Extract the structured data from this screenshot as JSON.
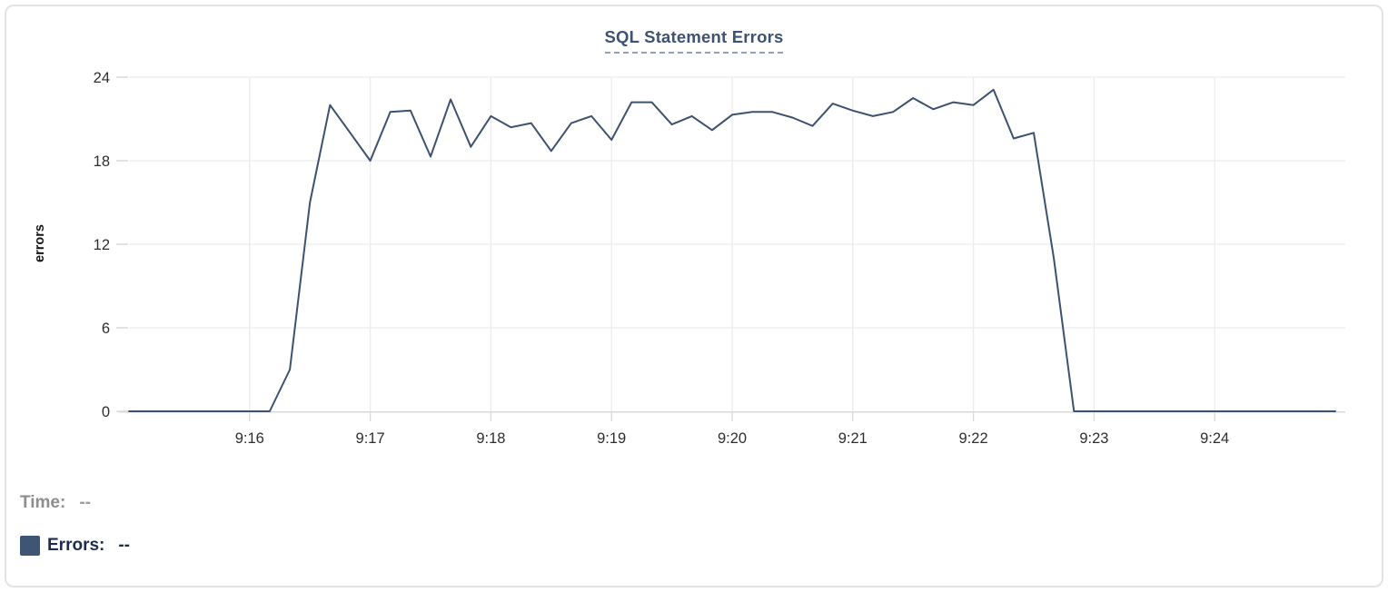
{
  "title": "SQL Statement Errors",
  "colors": {
    "line": "#3d5170",
    "swatch": "#3e5574",
    "title": "#3e5272",
    "title_underline": "#8fa0c2",
    "legend_time": "#8e8e8e",
    "legend_errors": "#1c2b4e",
    "tick_label": "#2e2e2e",
    "axis_title": "#151515",
    "grid": "#ececec",
    "axis": "#d9d9d9"
  },
  "readout": {
    "time_label": "Time:",
    "time_value": "--",
    "errors_label": "Errors:",
    "errors_value": "--"
  },
  "chart_data": {
    "type": "line",
    "title": "SQL Statement Errors",
    "xlabel": "",
    "ylabel": "errors",
    "ylim": [
      0,
      24
    ],
    "y_ticks": [
      0,
      6,
      12,
      18,
      24
    ],
    "x_tick_labels": [
      "9:16",
      "9:17",
      "9:18",
      "9:19",
      "9:20",
      "9:21",
      "9:22",
      "9:23",
      "9:24"
    ],
    "grid": true,
    "legend_position": "bottom-left",
    "x": [
      "9:15:00",
      "9:15:10",
      "9:15:20",
      "9:15:30",
      "9:15:40",
      "9:15:50",
      "9:16:00",
      "9:16:10",
      "9:16:20",
      "9:16:30",
      "9:16:40",
      "9:16:50",
      "9:17:00",
      "9:17:10",
      "9:17:20",
      "9:17:30",
      "9:17:40",
      "9:17:50",
      "9:18:00",
      "9:18:10",
      "9:18:20",
      "9:18:30",
      "9:18:40",
      "9:18:50",
      "9:19:00",
      "9:19:10",
      "9:19:20",
      "9:19:30",
      "9:19:40",
      "9:19:50",
      "9:20:00",
      "9:20:10",
      "9:20:20",
      "9:20:30",
      "9:20:40",
      "9:20:50",
      "9:21:00",
      "9:21:10",
      "9:21:20",
      "9:21:30",
      "9:21:40",
      "9:21:50",
      "9:22:00",
      "9:22:10",
      "9:22:20",
      "9:22:30",
      "9:22:40",
      "9:22:50",
      "9:23:00",
      "9:23:10",
      "9:23:20",
      "9:23:30",
      "9:23:40",
      "9:23:50",
      "9:24:00",
      "9:24:10",
      "9:24:20",
      "9:24:30",
      "9:24:40",
      "9:24:50",
      "9:25:00"
    ],
    "series": [
      {
        "name": "Errors",
        "values": [
          0,
          0,
          0,
          0,
          0,
          0,
          0,
          0,
          3,
          15,
          22,
          20,
          18,
          21.5,
          21.6,
          18.3,
          22.4,
          19,
          21.2,
          20.4,
          20.7,
          18.7,
          20.7,
          21.2,
          19.5,
          22.2,
          22.2,
          20.6,
          21.2,
          20.2,
          21.3,
          21.5,
          21.5,
          21.1,
          20.5,
          22.1,
          21.6,
          21.2,
          21.5,
          22.5,
          21.7,
          22.2,
          22,
          23.1,
          19.6,
          20,
          11,
          0,
          0,
          0,
          0,
          0,
          0,
          0,
          0,
          0,
          0,
          0,
          0,
          0,
          0
        ]
      }
    ]
  }
}
